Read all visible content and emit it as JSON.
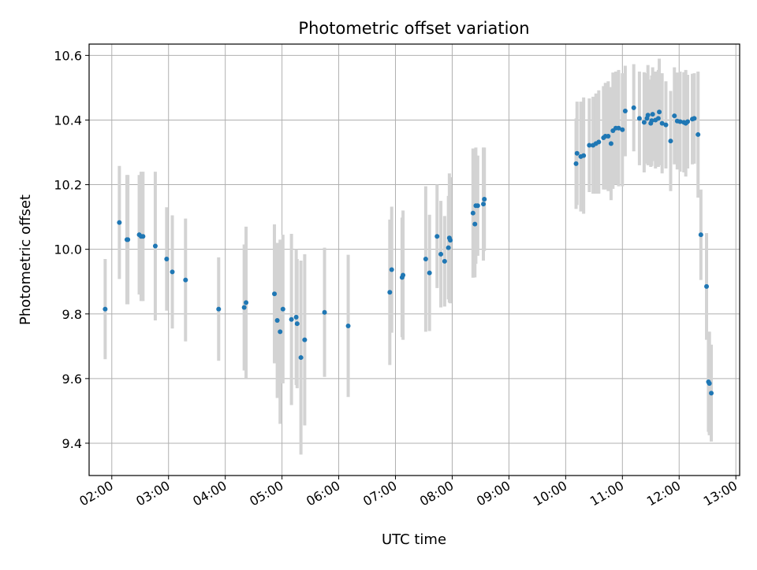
{
  "chart_data": {
    "type": "scatter",
    "title": "Photometric offset variation",
    "xlabel": "UTC time",
    "ylabel": "Photometric offset",
    "xlim": [
      "01:36",
      "13:04"
    ],
    "ylim": [
      9.3,
      10.635
    ],
    "x_ticks": [
      "02:00",
      "03:00",
      "04:00",
      "05:00",
      "06:00",
      "07:00",
      "08:00",
      "09:00",
      "10:00",
      "11:00",
      "12:00",
      "13:00"
    ],
    "y_ticks": [
      "9.4",
      "9.6",
      "9.8",
      "10.0",
      "10.2",
      "10.4",
      "10.6"
    ],
    "grid": true,
    "colors": {
      "points": "#1f77b4",
      "error_bars": "#d3d3d3",
      "grid": "#b0b0b0"
    },
    "series": [
      {
        "x": [
          "01:53",
          "02:08",
          "02:16",
          "02:17",
          "02:29",
          "02:31",
          "02:33",
          "02:46",
          "02:58",
          "03:04",
          "03:18",
          "03:53",
          "04:20",
          "04:22",
          "04:52",
          "04:55",
          "04:58",
          "05:01",
          "05:10",
          "05:15",
          "05:16",
          "05:20",
          "05:24",
          "05:45",
          "06:10",
          "06:54",
          "06:56",
          "07:07",
          "07:08",
          "07:32",
          "07:36",
          "07:44",
          "07:48",
          "07:52",
          "07:56",
          "07:57",
          "07:58",
          "08:22",
          "08:24",
          "08:25",
          "08:27",
          "08:33",
          "08:34",
          "10:11",
          "10:12",
          "10:16",
          "10:19",
          "10:25",
          "10:29",
          "10:32",
          "10:35",
          "10:40",
          "10:42",
          "10:45",
          "10:48",
          "10:50",
          "10:53",
          "10:56",
          "11:00",
          "11:03",
          "11:12",
          "11:18",
          "11:23",
          "11:26",
          "11:27",
          "11:30",
          "11:31",
          "11:32",
          "11:35",
          "11:38",
          "11:39",
          "11:42",
          "11:46",
          "11:51",
          "11:55",
          "11:58",
          "12:01",
          "12:05",
          "12:07",
          "12:09",
          "12:14",
          "12:16",
          "12:20",
          "12:23",
          "12:29",
          "12:31",
          "12:32",
          "12:32",
          "12:34"
        ],
        "y": [
          9.815,
          10.083,
          10.03,
          10.03,
          10.045,
          10.04,
          10.04,
          10.01,
          9.97,
          9.93,
          9.905,
          9.815,
          9.82,
          9.835,
          9.862,
          9.78,
          9.745,
          9.815,
          9.783,
          9.79,
          9.77,
          9.665,
          9.72,
          9.805,
          9.763,
          9.867,
          9.937,
          9.913,
          9.92,
          9.97,
          9.927,
          10.04,
          9.985,
          9.963,
          10.005,
          10.035,
          10.028,
          10.112,
          10.078,
          10.135,
          10.135,
          10.14,
          10.155,
          10.265,
          10.297,
          10.287,
          10.29,
          10.322,
          10.322,
          10.327,
          10.332,
          10.345,
          10.35,
          10.35,
          10.327,
          10.367,
          10.375,
          10.375,
          10.37,
          10.428,
          10.438,
          10.405,
          10.393,
          10.405,
          10.415,
          10.39,
          10.398,
          10.418,
          10.4,
          10.405,
          10.425,
          10.39,
          10.385,
          10.335,
          10.413,
          10.397,
          10.395,
          10.393,
          10.39,
          10.395,
          10.403,
          10.405,
          10.355,
          10.045,
          9.885,
          9.59,
          9.585,
          9.585,
          9.555
        ],
        "err": [
          0.155,
          0.175,
          0.2,
          0.2,
          0.185,
          0.2,
          0.2,
          0.23,
          0.16,
          0.175,
          0.19,
          0.16,
          0.195,
          0.235,
          0.215,
          0.24,
          0.285,
          0.23,
          0.265,
          0.21,
          0.2,
          0.3,
          0.265,
          0.2,
          0.22,
          0.225,
          0.195,
          0.185,
          0.2,
          0.225,
          0.18,
          0.16,
          0.165,
          0.14,
          0.16,
          0.2,
          0.195,
          0.2,
          0.165,
          0.18,
          0.155,
          0.175,
          0.16,
          0.14,
          0.16,
          0.17,
          0.18,
          0.145,
          0.15,
          0.155,
          0.16,
          0.16,
          0.165,
          0.17,
          0.175,
          0.18,
          0.175,
          0.18,
          0.175,
          0.14,
          0.135,
          0.145,
          0.155,
          0.14,
          0.155,
          0.135,
          0.14,
          0.145,
          0.15,
          0.15,
          0.165,
          0.155,
          0.135,
          0.155,
          0.15,
          0.15,
          0.155,
          0.155,
          0.165,
          0.145,
          0.14,
          0.14,
          0.195,
          0.14,
          0.165,
          0.155,
          0.16,
          0.16,
          0.15
        ]
      }
    ]
  }
}
